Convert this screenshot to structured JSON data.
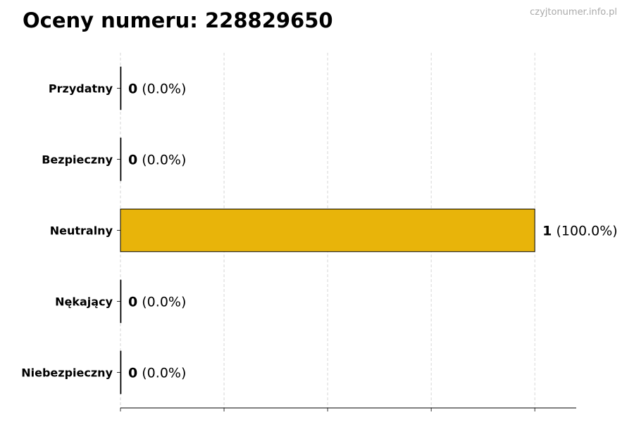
{
  "title": "Oceny numeru: 228829650",
  "watermark": "czyjtonumer.info.pl",
  "chart_data": {
    "type": "bar",
    "orientation": "horizontal",
    "title": "Oceny numeru: 228829650",
    "categories": [
      "Przydatny",
      "Bezpieczny",
      "Neutralny",
      "Nękający",
      "Niebezpieczny"
    ],
    "values": [
      0,
      0,
      1,
      0,
      0
    ],
    "labels": [
      {
        "count": "0",
        "pct": "(0.0%)"
      },
      {
        "count": "0",
        "pct": "(0.0%)"
      },
      {
        "count": "1",
        "pct": "(100.0%)"
      },
      {
        "count": "0",
        "pct": "(0.0%)"
      },
      {
        "count": "0",
        "pct": "(0.0%)"
      }
    ],
    "xlim": [
      0,
      1.1
    ],
    "x_grid_ticks": [
      0,
      0.25,
      0.5,
      0.75,
      1.0
    ],
    "xlabel": "",
    "ylabel": "",
    "grid": "x, dashed",
    "bar_color": "#E8B40A",
    "edge_color": "#000000"
  }
}
